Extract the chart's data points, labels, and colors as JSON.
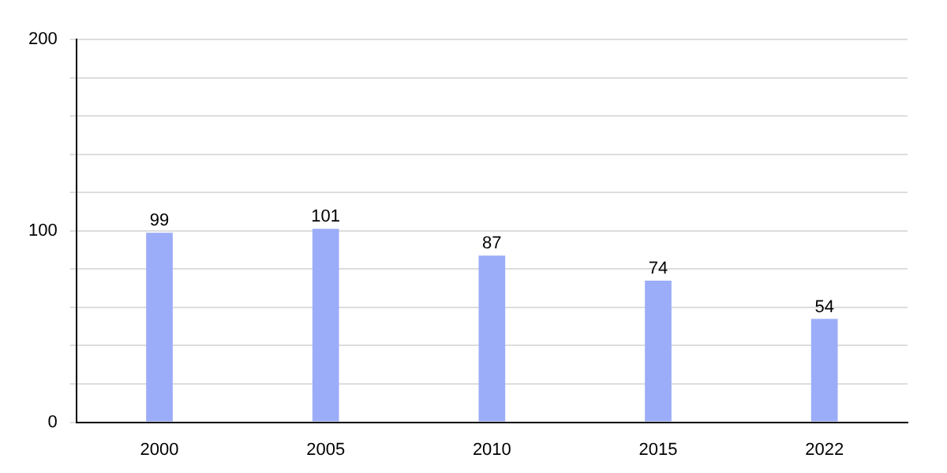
{
  "chart_data": {
    "type": "bar",
    "categories": [
      "2000",
      "2005",
      "2010",
      "2015",
      "2022"
    ],
    "values": [
      99,
      101,
      87,
      74,
      54
    ],
    "color": "#9badf8",
    "ylim": [
      0,
      200
    ],
    "yticks": [
      0,
      {
        "value": 20,
        "label": null
      },
      {
        "value": 40,
        "label": null
      },
      {
        "value": 60,
        "label": null
      },
      {
        "value": 80,
        "label": null
      },
      100,
      {
        "value": 120,
        "label": null
      },
      {
        "value": 140,
        "label": null
      },
      {
        "value": 160,
        "label": null
      },
      {
        "value": 180,
        "label": null
      },
      200
    ],
    "grid": true,
    "data_labels": true
  }
}
